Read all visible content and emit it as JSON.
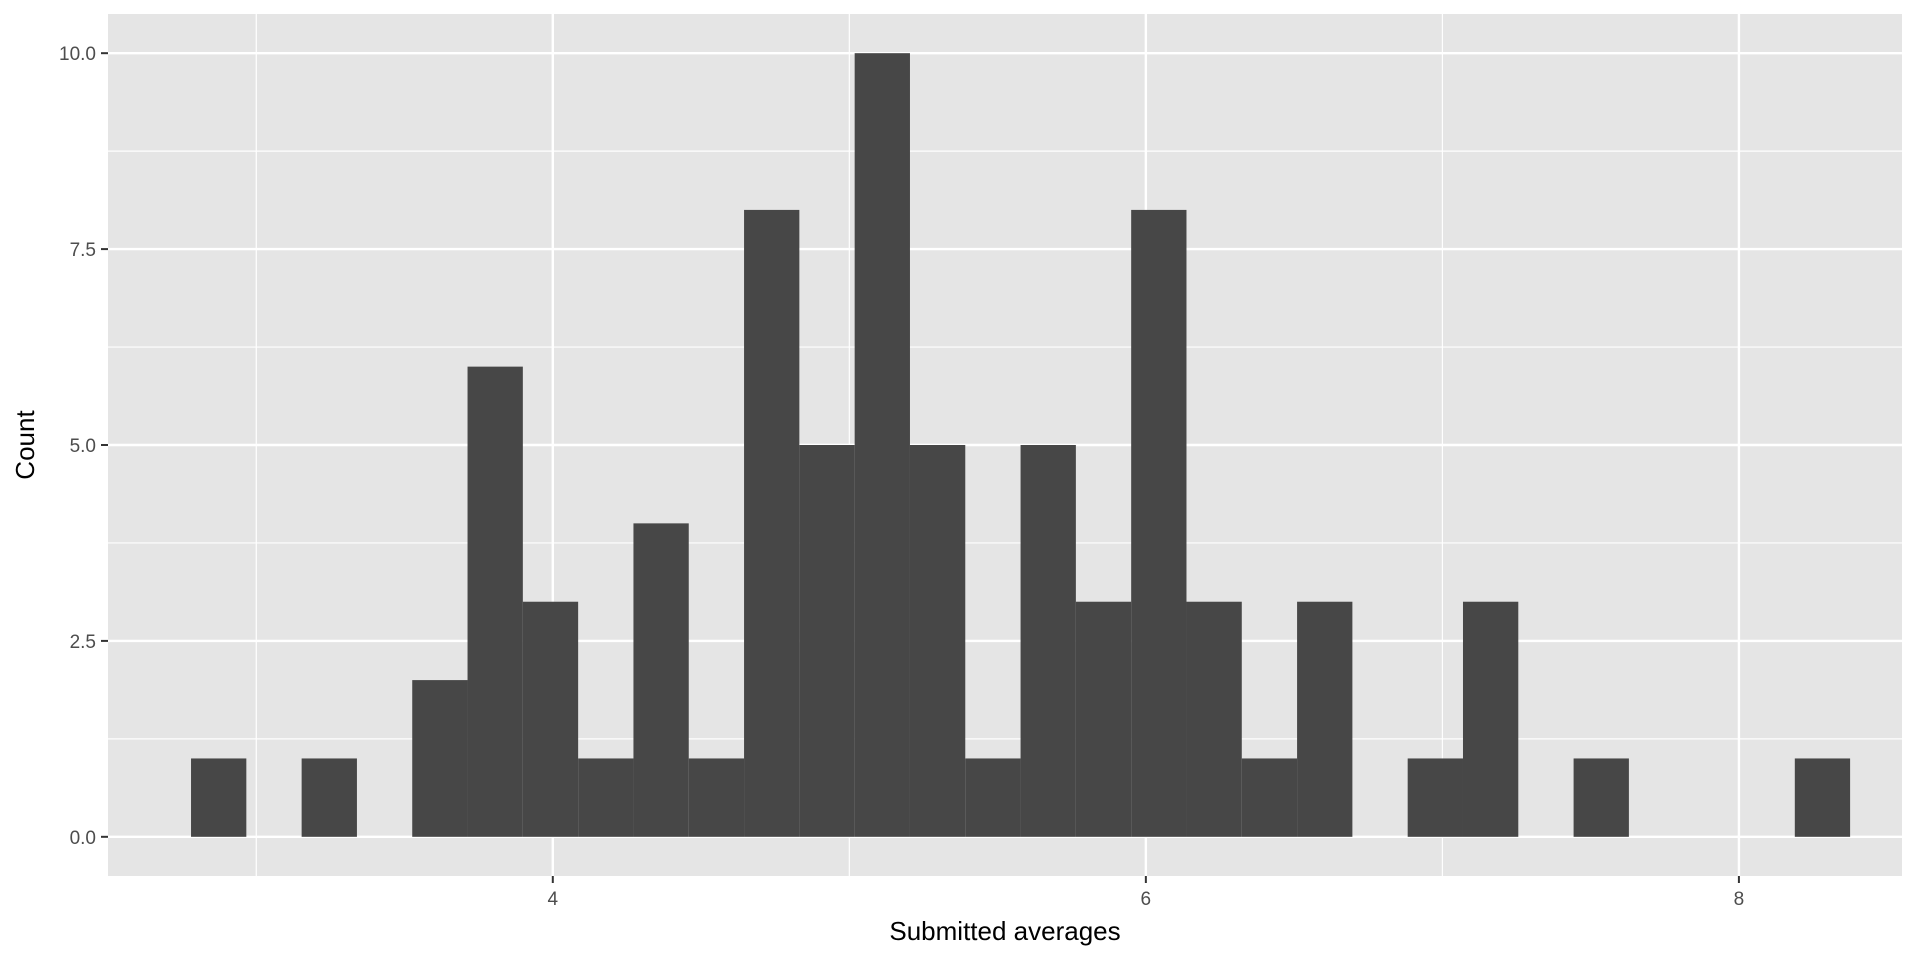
{
  "chart_data": {
    "type": "bar",
    "subtype": "histogram",
    "xlabel": "Submitted averages",
    "ylabel": "Count",
    "xlim": [
      2.5,
      8.55
    ],
    "ylim": [
      -0.5,
      10.5
    ],
    "x_ticks": [
      {
        "value": 4,
        "label": "4"
      },
      {
        "value": 6,
        "label": "6"
      },
      {
        "value": 8,
        "label": "8"
      }
    ],
    "x_minor_gridlines": [
      3,
      5,
      7
    ],
    "y_ticks": [
      {
        "value": 0,
        "label": "0.0"
      },
      {
        "value": 2.5,
        "label": "2.5"
      },
      {
        "value": 5,
        "label": "5.0"
      },
      {
        "value": 7.5,
        "label": "7.5"
      },
      {
        "value": 10,
        "label": "10.0"
      }
    ],
    "y_minor_gridlines": [
      1.25,
      3.75,
      6.25,
      8.75
    ],
    "grid": true,
    "bin_width": 0.1865,
    "bins": [
      {
        "x0": 2.78,
        "count": 1
      },
      {
        "x0": 3.153,
        "count": 1
      },
      {
        "x0": 3.526,
        "count": 2
      },
      {
        "x0": 3.7125,
        "count": 6
      },
      {
        "x0": 3.899,
        "count": 3
      },
      {
        "x0": 4.0855,
        "count": 1
      },
      {
        "x0": 4.272,
        "count": 4
      },
      {
        "x0": 4.4585,
        "count": 1
      },
      {
        "x0": 4.645,
        "count": 8
      },
      {
        "x0": 4.8315,
        "count": 5
      },
      {
        "x0": 5.018,
        "count": 10
      },
      {
        "x0": 5.2045,
        "count": 5
      },
      {
        "x0": 5.391,
        "count": 1
      },
      {
        "x0": 5.5775,
        "count": 5
      },
      {
        "x0": 5.764,
        "count": 3
      },
      {
        "x0": 5.9505,
        "count": 8
      },
      {
        "x0": 6.137,
        "count": 3
      },
      {
        "x0": 6.3235,
        "count": 1
      },
      {
        "x0": 6.51,
        "count": 3
      },
      {
        "x0": 6.883,
        "count": 1
      },
      {
        "x0": 7.0695,
        "count": 3
      },
      {
        "x0": 7.4425,
        "count": 1
      },
      {
        "x0": 8.1885,
        "count": 1
      }
    ],
    "colors": {
      "panel": "#e5e5e5",
      "grid": "#ffffff",
      "bar": "#474747",
      "tick_label": "#4d4d4d",
      "axis_title": "#000000"
    }
  }
}
